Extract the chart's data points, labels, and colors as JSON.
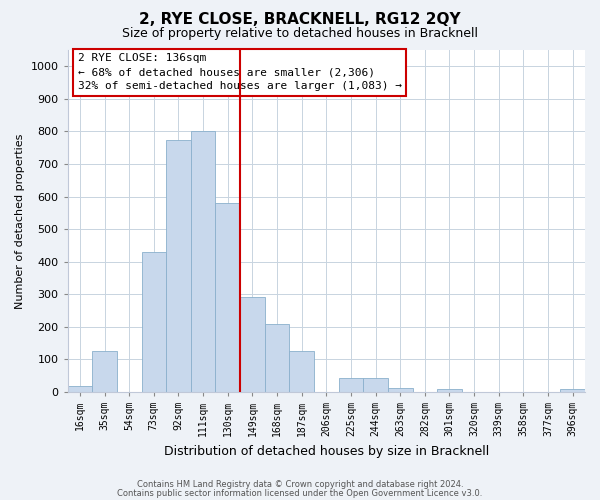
{
  "title": "2, RYE CLOSE, BRACKNELL, RG12 2QY",
  "subtitle": "Size of property relative to detached houses in Bracknell",
  "xlabel": "Distribution of detached houses by size in Bracknell",
  "ylabel": "Number of detached properties",
  "bar_labels": [
    "16sqm",
    "35sqm",
    "54sqm",
    "73sqm",
    "92sqm",
    "111sqm",
    "130sqm",
    "149sqm",
    "168sqm",
    "187sqm",
    "206sqm",
    "225sqm",
    "244sqm",
    "263sqm",
    "282sqm",
    "301sqm",
    "320sqm",
    "339sqm",
    "358sqm",
    "377sqm",
    "396sqm"
  ],
  "bar_values": [
    18,
    125,
    0,
    430,
    775,
    800,
    580,
    290,
    210,
    125,
    0,
    42,
    42,
    12,
    0,
    10,
    0,
    0,
    0,
    0,
    8
  ],
  "bar_color": "#c8d8ec",
  "bar_edge_color": "#8ab0cc",
  "vline_color": "#cc0000",
  "annotation_line1": "2 RYE CLOSE: 136sqm",
  "annotation_line2": "← 68% of detached houses are smaller (2,306)",
  "annotation_line3": "32% of semi-detached houses are larger (1,083) →",
  "annotation_box_edgecolor": "#cc0000",
  "annotation_box_facecolor": "#ffffff",
  "ylim": [
    0,
    1050
  ],
  "yticks": [
    0,
    100,
    200,
    300,
    400,
    500,
    600,
    700,
    800,
    900,
    1000
  ],
  "footer_line1": "Contains HM Land Registry data © Crown copyright and database right 2024.",
  "footer_line2": "Contains public sector information licensed under the Open Government Licence v3.0.",
  "bg_color": "#eef2f7",
  "plot_bg_color": "#ffffff",
  "grid_color": "#c8d4e0"
}
